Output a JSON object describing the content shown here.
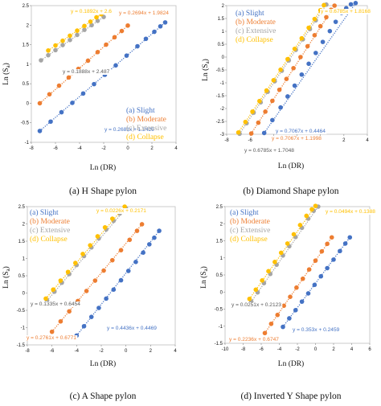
{
  "colors": {
    "slight": "#4472c4",
    "moderate": "#ed7d31",
    "extensive": "#a5a5a5",
    "collapse": "#ffc000",
    "slight_eq_text": "#4472c4",
    "moderate_eq_text": "#ed7d31",
    "extensive_eq_text": "#595959",
    "collapse_eq_text": "#ffc000"
  },
  "chart_data": [
    {
      "type": "scatter",
      "caption": "(a) H Shape pylon",
      "xlabel": "Ln (DR)",
      "ylabel": "Ln (S",
      "ylabel_sub": "a",
      "ylabel_end": ")",
      "xlim": [
        -8,
        4
      ],
      "ylim": [
        -1,
        2.5
      ],
      "xticks": [
        "-8",
        "-6",
        "-4",
        "-2",
        "0",
        "2",
        "4"
      ],
      "yticks": [
        "-1",
        "-0.5",
        "0",
        "0.5",
        "1",
        "1.5",
        "2",
        "2.5"
      ],
      "legend": [
        "(a) Slight",
        "(b) Moderate",
        "(c) Extensive",
        "(d) Collapse"
      ],
      "legend_position": "bottom-right",
      "series": [
        {
          "name": "(a) Slight",
          "equation": "y = 0.2681x + 1.2429",
          "x": [
            -7.3,
            -6.4,
            -5.5,
            -4.6,
            -3.7,
            -2.8,
            -1.9,
            -1.0,
            -0.1,
            0.8,
            1.5,
            2.2,
            2.7,
            3.1
          ],
          "y": [
            -0.71,
            -0.47,
            -0.23,
            0.01,
            0.25,
            0.49,
            0.73,
            0.97,
            1.22,
            1.46,
            1.65,
            1.83,
            1.97,
            2.07
          ]
        },
        {
          "name": "(b) Moderate",
          "equation": "y = 0.2694x + 1.9824",
          "x": [
            -7.3,
            -6.5,
            -5.7,
            -4.9,
            -4.1,
            -3.3,
            -2.5,
            -1.8,
            -1.1,
            -0.5,
            0.0
          ],
          "y": [
            0.0,
            0.23,
            0.45,
            0.66,
            0.88,
            1.09,
            1.31,
            1.5,
            1.69,
            1.85,
            1.99
          ]
        },
        {
          "name": "(c) Extensive",
          "equation": "y = 0.1888x + 2.487",
          "x": [
            -7.2,
            -6.6,
            -6.0,
            -5.4,
            -4.8,
            -4.2,
            -3.6,
            -3.0,
            -2.5,
            -2.0
          ],
          "y": [
            1.1,
            1.23,
            1.36,
            1.49,
            1.62,
            1.75,
            1.88,
            2.0,
            2.11,
            2.21
          ]
        },
        {
          "name": "(d) Collapse",
          "equation": "y = 0.1892x + 2.6",
          "x": [
            -6.6,
            -6.0,
            -5.4,
            -4.8,
            -4.2,
            -3.6,
            -3.1,
            -2.6,
            -2.2
          ],
          "y": [
            1.35,
            1.48,
            1.6,
            1.73,
            1.86,
            1.98,
            2.09,
            2.2,
            2.28
          ]
        }
      ]
    },
    {
      "type": "scatter",
      "caption": "(b) Diamond Shape pylon",
      "xlabel": "Ln (DR)",
      "ylabel": "Ln (S",
      "ylabel_sub": "a",
      "ylabel_end": ")",
      "xlim": [
        -8,
        4
      ],
      "ylim": [
        -3,
        2
      ],
      "xticks": [
        "-8",
        "-6",
        "-4",
        "-2",
        "0",
        "2",
        "4"
      ],
      "yticks": [
        "-3",
        "-2.5",
        "-2",
        "-1.5",
        "-1",
        "-0.5",
        "0",
        "0.5",
        "1",
        "1.5",
        "2"
      ],
      "legend": [
        "(a) Slight",
        "(b) Moderate",
        "(c) Extensive",
        "(d) Collapse"
      ],
      "legend_position": "top-left",
      "series": [
        {
          "name": "(a) Slight",
          "equation": "y = 0.7067x + 0.4464",
          "x": [
            -4.8,
            -4.1,
            -3.4,
            -2.8,
            -2.2,
            -1.6,
            -1.0,
            -0.4,
            0.2,
            0.8,
            1.3,
            1.8,
            2.2,
            2.6,
            3.0
          ],
          "y": [
            -2.95,
            -2.45,
            -1.96,
            -1.53,
            -1.11,
            -0.68,
            -0.26,
            0.16,
            0.59,
            1.01,
            1.37,
            1.72,
            1.9,
            2.05,
            2.1
          ]
        },
        {
          "name": "(b) Moderate",
          "equation": "y = 0.7067x + 1.1998",
          "x": [
            -5.9,
            -5.3,
            -4.7,
            -4.1,
            -3.5,
            -2.9,
            -2.3,
            -1.7,
            -1.1,
            -0.5,
            0.0,
            0.5,
            0.9,
            1.2
          ],
          "y": [
            -2.97,
            -2.55,
            -2.12,
            -1.7,
            -1.27,
            -0.85,
            -0.43,
            0.0,
            0.42,
            0.85,
            1.2,
            1.55,
            1.84,
            2.0
          ]
        },
        {
          "name": "(c) Extensive",
          "equation": "y = 0.6785x + 1.7048",
          "x": [
            -6.9,
            -6.3,
            -5.7,
            -5.1,
            -4.5,
            -3.9,
            -3.3,
            -2.7,
            -2.1,
            -1.5,
            -0.9,
            -0.4,
            0.1,
            0.5
          ],
          "y": [
            -2.98,
            -2.57,
            -2.16,
            -1.76,
            -1.35,
            -0.94,
            -0.53,
            -0.13,
            0.28,
            0.69,
            1.09,
            1.43,
            1.77,
            2.04
          ]
        },
        {
          "name": "(d) Collapse",
          "equation": "y = 0.6785x + 1.8168",
          "x": [
            -7.0,
            -6.4,
            -5.8,
            -5.2,
            -4.6,
            -4.0,
            -3.4,
            -2.8,
            -2.2,
            -1.6,
            -1.0,
            -0.5,
            0.0,
            0.3
          ],
          "y": [
            -2.93,
            -2.52,
            -2.12,
            -1.71,
            -1.3,
            -0.9,
            -0.49,
            -0.08,
            0.32,
            0.73,
            1.14,
            1.48,
            1.82,
            2.02
          ]
        }
      ]
    },
    {
      "type": "scatter",
      "caption": "(c) A Shape pylon",
      "xlabel": "Ln (DR)",
      "ylabel": "Ln (S",
      "ylabel_sub": "a",
      "ylabel_end": ")",
      "xlim": [
        -8,
        4
      ],
      "ylim": [
        -1.5,
        2.5
      ],
      "xticks": [
        "-8",
        "-6",
        "-4",
        "-2",
        "0",
        "2",
        "4"
      ],
      "yticks": [
        "-1.5",
        "-1",
        "-0.5",
        "0",
        "0.5",
        "1",
        "1.5",
        "2",
        "2.5"
      ],
      "legend": [
        "(a) Slight",
        "(b) Moderate",
        "(c) Extensive",
        "(d) Collapse"
      ],
      "legend_position": "top-left",
      "series": [
        {
          "name": "(a) Slight",
          "equation": "y = 0.4436x + 0.4469",
          "x": [
            -4.0,
            -3.4,
            -2.8,
            -2.2,
            -1.6,
            -1.0,
            -0.4,
            0.2,
            0.8,
            1.4,
            1.9,
            2.3,
            2.7
          ],
          "y": [
            -1.23,
            -0.96,
            -0.69,
            -0.43,
            -0.16,
            0.1,
            0.37,
            0.64,
            0.9,
            1.17,
            1.41,
            1.6,
            1.8
          ]
        },
        {
          "name": "(b) Moderate",
          "equation": "y = 0.2761x + 0.6771",
          "x": [
            -6.0,
            -5.3,
            -4.6,
            -3.9,
            -3.2,
            -2.5,
            -1.8,
            -1.1,
            -0.4,
            0.3,
            0.9,
            1.3
          ],
          "y": [
            -1.12,
            -0.82,
            -0.53,
            -0.23,
            0.06,
            0.36,
            0.65,
            0.95,
            1.24,
            1.54,
            1.8,
            1.99
          ]
        },
        {
          "name": "(c) Extensive",
          "equation": "y = 0.1335x + 0.6454",
          "x": [
            -6.4,
            -5.8,
            -5.2,
            -4.6,
            -4.0,
            -3.4,
            -2.8,
            -2.2,
            -1.6,
            -1.0,
            -0.5,
            0.0
          ],
          "y": [
            -0.22,
            0.04,
            0.3,
            0.55,
            0.81,
            1.07,
            1.32,
            1.58,
            1.84,
            2.09,
            2.3,
            2.45
          ]
        },
        {
          "name": "(d) Collapse",
          "equation": "y = 0.0226x + 0.2171",
          "x": [
            -6.5,
            -5.9,
            -5.3,
            -4.7,
            -4.1,
            -3.5,
            -2.9,
            -2.3,
            -1.7,
            -1.1,
            -0.6,
            -0.1
          ],
          "y": [
            -0.16,
            0.1,
            0.36,
            0.61,
            0.87,
            1.13,
            1.38,
            1.64,
            1.9,
            2.15,
            2.36,
            2.5
          ]
        }
      ]
    },
    {
      "type": "scatter",
      "caption": "(d) Inverted Y Shape pylon",
      "xlabel": "Ln (DR)",
      "ylabel": "Ln (S",
      "ylabel_sub": "a",
      "ylabel_end": ")",
      "xlim": [
        -10,
        6
      ],
      "ylim": [
        -1.5,
        2.5
      ],
      "xticks": [
        "-10",
        "-8",
        "-6",
        "-4",
        "-2",
        "0",
        "2",
        "4",
        "6"
      ],
      "yticks": [
        "-1.5",
        "-1",
        "-0.5",
        "0",
        "0.5",
        "1",
        "1.5",
        "2",
        "2.5"
      ],
      "legend": [
        "(a) Slight",
        "(b) Moderate",
        "(c) Extensive",
        "(d) Collapse"
      ],
      "legend_position": "top-left",
      "series": [
        {
          "name": "(a) Slight",
          "equation": "y = 0.353x + 0.2459",
          "x": [
            -3.6,
            -2.9,
            -2.2,
            -1.5,
            -0.8,
            -0.1,
            0.6,
            1.3,
            2.0,
            2.7,
            3.3,
            3.8
          ],
          "y": [
            -1.02,
            -0.77,
            -0.53,
            -0.28,
            -0.04,
            0.21,
            0.46,
            0.7,
            0.95,
            1.2,
            1.42,
            1.6
          ]
        },
        {
          "name": "(b) Moderate",
          "equation": "y = 0.2236x + 0.6747",
          "x": [
            -5.6,
            -4.9,
            -4.2,
            -3.5,
            -2.8,
            -2.1,
            -1.4,
            -0.7,
            0.0,
            0.7,
            1.3,
            1.8
          ],
          "y": [
            -1.2,
            -0.93,
            -0.67,
            -0.4,
            -0.14,
            0.13,
            0.39,
            0.66,
            0.92,
            1.19,
            1.41,
            1.6
          ]
        },
        {
          "name": "(c) Extensive",
          "equation": "y = 0.0251x + 0.2123",
          "x": [
            -7.1,
            -6.4,
            -5.7,
            -5.0,
            -4.3,
            -3.6,
            -2.9,
            -2.2,
            -1.5,
            -0.8,
            -0.2,
            0.3
          ],
          "y": [
            -0.28,
            -0.01,
            0.26,
            0.53,
            0.8,
            1.07,
            1.34,
            1.61,
            1.88,
            2.15,
            2.38,
            2.5
          ]
        },
        {
          "name": "(d) Collapse",
          "equation": "y = 0.0494x + 0.1388",
          "x": [
            -7.3,
            -6.6,
            -5.9,
            -5.2,
            -4.5,
            -3.8,
            -3.1,
            -2.4,
            -1.7,
            -1.0,
            -0.4,
            0.0
          ],
          "y": [
            -0.2,
            0.07,
            0.34,
            0.61,
            0.88,
            1.15,
            1.42,
            1.69,
            1.96,
            2.23,
            2.42,
            2.52
          ]
        }
      ]
    }
  ]
}
